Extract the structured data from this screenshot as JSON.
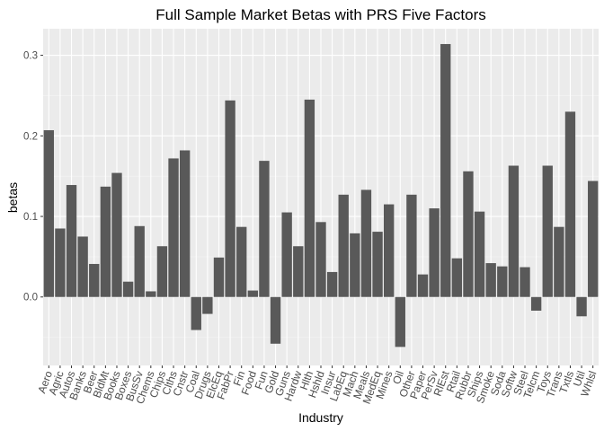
{
  "chart_data": {
    "type": "bar",
    "title": "Full Sample Market Betas with PRS Five Factors",
    "xlabel": "Industry",
    "ylabel": "betas",
    "ylim": [
      -0.085,
      0.333
    ],
    "yticks": [
      0.0,
      0.1,
      0.2,
      0.3
    ],
    "ytick_labels": [
      "0.0",
      "0.1",
      "0.2",
      "0.3"
    ],
    "grid": true,
    "legend": "none",
    "categories": [
      "Aero",
      "Agric",
      "Autos",
      "Banks",
      "Beer",
      "BldMt",
      "Books",
      "Boxes",
      "BusSv",
      "Chems",
      "Chips",
      "Clths",
      "Cnstr",
      "Coal",
      "Drugs",
      "ElcEq",
      "FabPr",
      "Fin",
      "Food",
      "Fun",
      "Gold",
      "Guns",
      "Hardw",
      "Hlth",
      "Hshld",
      "Insur",
      "LabEq",
      "Mach",
      "Meals",
      "MedEq",
      "Mines",
      "Oil",
      "Other",
      "Paper",
      "PerSv",
      "RlEst",
      "Rtail",
      "Rubbr",
      "Ships",
      "Smoke",
      "Soda",
      "Softw",
      "Steel",
      "Telcm",
      "Toys",
      "Trans",
      "Txtls",
      "Util",
      "Whlsl"
    ],
    "values": [
      0.207,
      0.085,
      0.139,
      0.075,
      0.041,
      0.137,
      0.154,
      0.019,
      0.088,
      0.007,
      0.063,
      0.172,
      0.182,
      -0.041,
      -0.021,
      0.049,
      0.244,
      0.087,
      0.008,
      0.169,
      -0.058,
      0.105,
      0.063,
      0.245,
      0.093,
      0.031,
      0.127,
      0.079,
      0.133,
      0.081,
      0.115,
      -0.062,
      0.127,
      0.028,
      0.11,
      0.314,
      0.048,
      0.156,
      0.106,
      0.042,
      0.038,
      0.163,
      0.037,
      -0.017,
      0.163,
      0.087,
      0.23,
      -0.024,
      0.144
    ],
    "colors": {
      "bar": "#595959",
      "panel": "#ebebeb",
      "grid_major": "#ffffff",
      "grid_minor": "#f5f5f5",
      "tick_text": "#4d4d4d",
      "tick_mark": "#333333",
      "text": "#000000",
      "background": "#ffffff"
    }
  }
}
